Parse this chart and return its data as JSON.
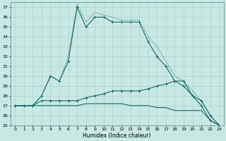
{
  "xlabel": "Humidex (Indice chaleur)",
  "xlim": [
    -0.5,
    23.5
  ],
  "ylim": [
    25,
    37.5
  ],
  "yticks": [
    25,
    26,
    27,
    28,
    29,
    30,
    31,
    32,
    33,
    34,
    35,
    36,
    37
  ],
  "xticks": [
    0,
    1,
    2,
    3,
    4,
    5,
    6,
    7,
    8,
    9,
    10,
    11,
    12,
    13,
    14,
    15,
    16,
    17,
    18,
    19,
    20,
    21,
    22,
    23
  ],
  "xtick_labels": [
    "0",
    "1",
    "2",
    "3",
    "4",
    "5",
    "6",
    "7",
    "8",
    "9",
    "10",
    "11",
    "12",
    "13",
    "14",
    "15",
    "16",
    "17",
    "18",
    "19",
    "20",
    "21",
    "22",
    "23"
  ],
  "background_color": "#c8e8e4",
  "line_color": "#1a6b6b",
  "lines": [
    {
      "x": [
        0,
        1,
        2,
        3,
        4,
        5,
        6,
        7,
        8,
        9,
        10,
        11,
        12,
        13,
        14,
        15,
        16,
        17,
        18,
        19,
        20,
        21,
        22,
        23
      ],
      "y": [
        27,
        27,
        27,
        28,
        30,
        29.5,
        31.5,
        37,
        35,
        36,
        36,
        35.5,
        35.5,
        35.5,
        35.5,
        33.5,
        32,
        31,
        29.5,
        29,
        28,
        27,
        25.5,
        25
      ],
      "marker": "+",
      "linestyle": "-"
    },
    {
      "x": [
        0,
        1,
        2,
        3,
        4,
        5,
        6,
        7,
        8,
        9,
        10,
        11,
        12,
        13,
        14,
        15,
        16,
        17,
        18,
        19,
        20,
        21,
        22,
        23
      ],
      "y": [
        27,
        27,
        27,
        28,
        30,
        29.5,
        32,
        37.3,
        35.5,
        36.5,
        36.2,
        36,
        35.7,
        35.7,
        35.7,
        34,
        33,
        31.5,
        30,
        29.5,
        28.5,
        27.5,
        26,
        25
      ],
      "marker": null,
      "linestyle": ":"
    },
    {
      "x": [
        0,
        1,
        2,
        3,
        4,
        5,
        6,
        7,
        8,
        9,
        10,
        11,
        12,
        13,
        14,
        15,
        16,
        17,
        18,
        19,
        20,
        21,
        22,
        23
      ],
      "y": [
        27,
        27,
        27,
        27.5,
        27.5,
        27.5,
        27.5,
        27.5,
        27.8,
        28,
        28.2,
        28.5,
        28.5,
        28.5,
        28.5,
        28.7,
        29,
        29.2,
        29.5,
        29.5,
        28,
        27.5,
        26,
        25
      ],
      "marker": "+",
      "linestyle": "-"
    },
    {
      "x": [
        0,
        1,
        2,
        3,
        4,
        5,
        6,
        7,
        8,
        9,
        10,
        11,
        12,
        13,
        14,
        15,
        16,
        17,
        18,
        19,
        20,
        21,
        22,
        23
      ],
      "y": [
        27,
        27,
        27,
        27,
        27,
        27,
        27,
        27,
        27.2,
        27.2,
        27.2,
        27.2,
        27.2,
        27,
        27,
        27,
        26.8,
        26.8,
        26.5,
        26.5,
        26.5,
        26.5,
        25.5,
        25
      ],
      "marker": null,
      "linestyle": "-"
    }
  ]
}
